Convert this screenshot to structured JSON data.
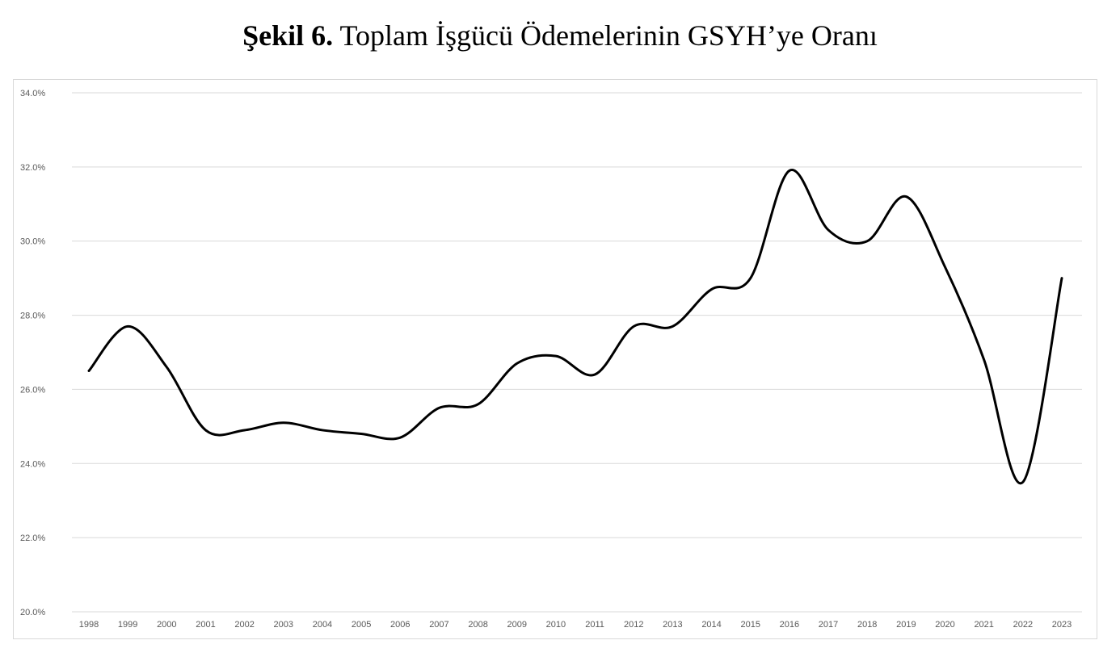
{
  "title": {
    "label": "Şekil 6.",
    "text": "Toplam İşgücü Ödemelerinin GSYH’ye Oranı"
  },
  "chart_data": {
    "type": "line",
    "title": "Şekil 6. Toplam İşgücü Ödemelerinin GSYH’ye Oranı",
    "xlabel": "",
    "ylabel": "",
    "ylim": [
      20,
      34
    ],
    "y_ticks": [
      "20.0%",
      "22.0%",
      "24.0%",
      "26.0%",
      "28.0%",
      "30.0%",
      "32.0%",
      "34.0%"
    ],
    "grid": true,
    "legend": "none",
    "line_color": "#000000",
    "grid_color": "#d9d9d9",
    "x": [
      "1998",
      "1999",
      "2000",
      "2001",
      "2002",
      "2003",
      "2004",
      "2005",
      "2006",
      "2007",
      "2008",
      "2009",
      "2010",
      "2011",
      "2012",
      "2013",
      "2014",
      "2015",
      "2016",
      "2017",
      "2018",
      "2019",
      "2020",
      "2021",
      "2022",
      "2023"
    ],
    "series": [
      {
        "values": [
          26.5,
          27.7,
          26.6,
          24.9,
          24.9,
          25.1,
          24.9,
          24.8,
          24.7,
          25.5,
          25.6,
          26.7,
          26.9,
          26.4,
          27.7,
          27.7,
          28.7,
          29.0,
          31.9,
          30.3,
          30.0,
          31.2,
          29.3,
          26.8,
          23.5,
          29.0
        ]
      }
    ]
  }
}
